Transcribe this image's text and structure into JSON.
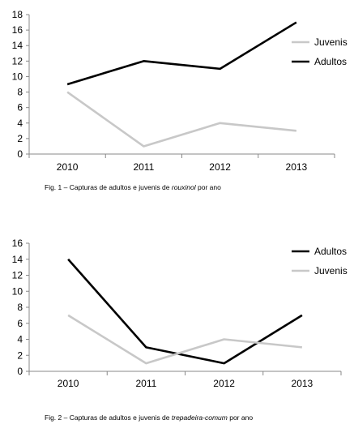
{
  "chart_data": [
    {
      "type": "line",
      "categories": [
        "2010",
        "2011",
        "2012",
        "2013"
      ],
      "series": [
        {
          "name": "Juvenis",
          "values": [
            8,
            1,
            4,
            3
          ],
          "color": "#c8c8c8"
        },
        {
          "name": "Adultos",
          "values": [
            9,
            12,
            11,
            17
          ],
          "color": "#000000"
        }
      ],
      "ylim": [
        0,
        18
      ],
      "yticks": [
        "0",
        "2",
        "4",
        "6",
        "8",
        "10",
        "12",
        "14",
        "16",
        "18"
      ],
      "legend": "right",
      "grid": false,
      "caption": {
        "prefix": "Fig. 1 – Capturas de adultos e juvenis de ",
        "species": "rouxinol",
        "suffix": " por ano"
      }
    },
    {
      "type": "line",
      "categories": [
        "2010",
        "2011",
        "2012",
        "2013"
      ],
      "series": [
        {
          "name": "Adultos",
          "values": [
            14,
            3,
            1,
            7
          ],
          "color": "#000000"
        },
        {
          "name": "Juvenis",
          "values": [
            7,
            1,
            4,
            3
          ],
          "color": "#c8c8c8"
        }
      ],
      "ylim": [
        0,
        16
      ],
      "yticks": [
        "0",
        "2",
        "4",
        "6",
        "8",
        "10",
        "12",
        "14",
        "16"
      ],
      "legend": "right",
      "grid": false,
      "caption": {
        "prefix": "Fig. 2 – Capturas de adultos e juvenis de ",
        "species": "trepadeira-comum",
        "suffix": " por ano"
      }
    }
  ]
}
